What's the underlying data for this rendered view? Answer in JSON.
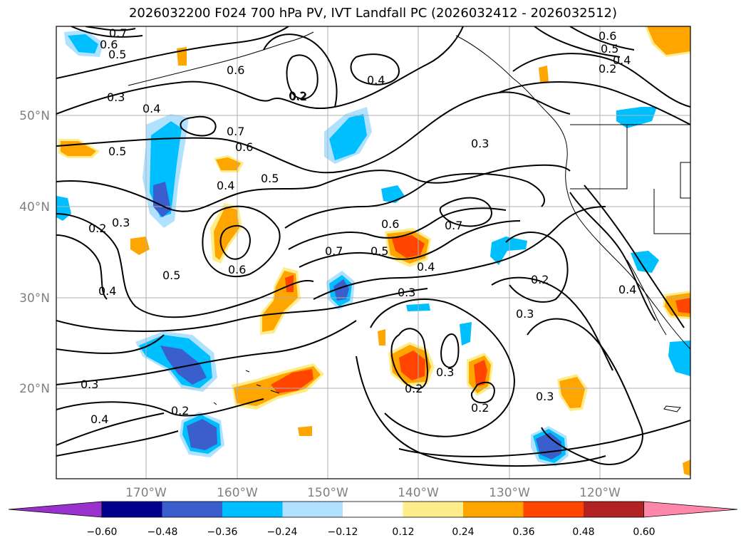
{
  "title": "2026032200 F024 700 hPa PV, IVT Landfall PC (2026032412 - 2026032512)",
  "lat_ticks": [
    "50°N",
    "40°N",
    "30°N",
    "20°N"
  ],
  "lon_ticks": [
    "170°W",
    "160°W",
    "150°W",
    "140°W",
    "130°W",
    "120°W"
  ],
  "colorbar": {
    "ticks": [
      "−0.60",
      "−0.48",
      "−0.36",
      "−0.24",
      "−0.12",
      "0.12",
      "0.24",
      "0.36",
      "0.48",
      "0.60"
    ],
    "colors": [
      "#9932cc",
      "#00008b",
      "#3a5fcd",
      "#00bfff",
      "#b0e2ff",
      "#ffffff",
      "#ffec8b",
      "#ffa500",
      "#ff4500",
      "#b22222",
      "#ff88aa"
    ]
  },
  "contour_labels": [
    "0.7",
    "0.6",
    "0.5",
    "0.3",
    "0.6",
    "0.4",
    "0.5",
    "0.7",
    "0.6",
    "0.4",
    "0.5",
    "0.2",
    "0.4",
    "0.2",
    "0.3",
    "0.7",
    "0.6",
    "0.4",
    "0.2",
    "0.3",
    "0.7",
    "0.6",
    "0.5",
    "0.4",
    "0.3",
    "0.2",
    "0.2",
    "0.3",
    "0.3",
    "0.2",
    "0.2",
    "0.3",
    "0.4",
    "0.2",
    "0.3",
    "0.4",
    "0.4",
    "0.6",
    "0.5",
    "0.5"
  ]
}
